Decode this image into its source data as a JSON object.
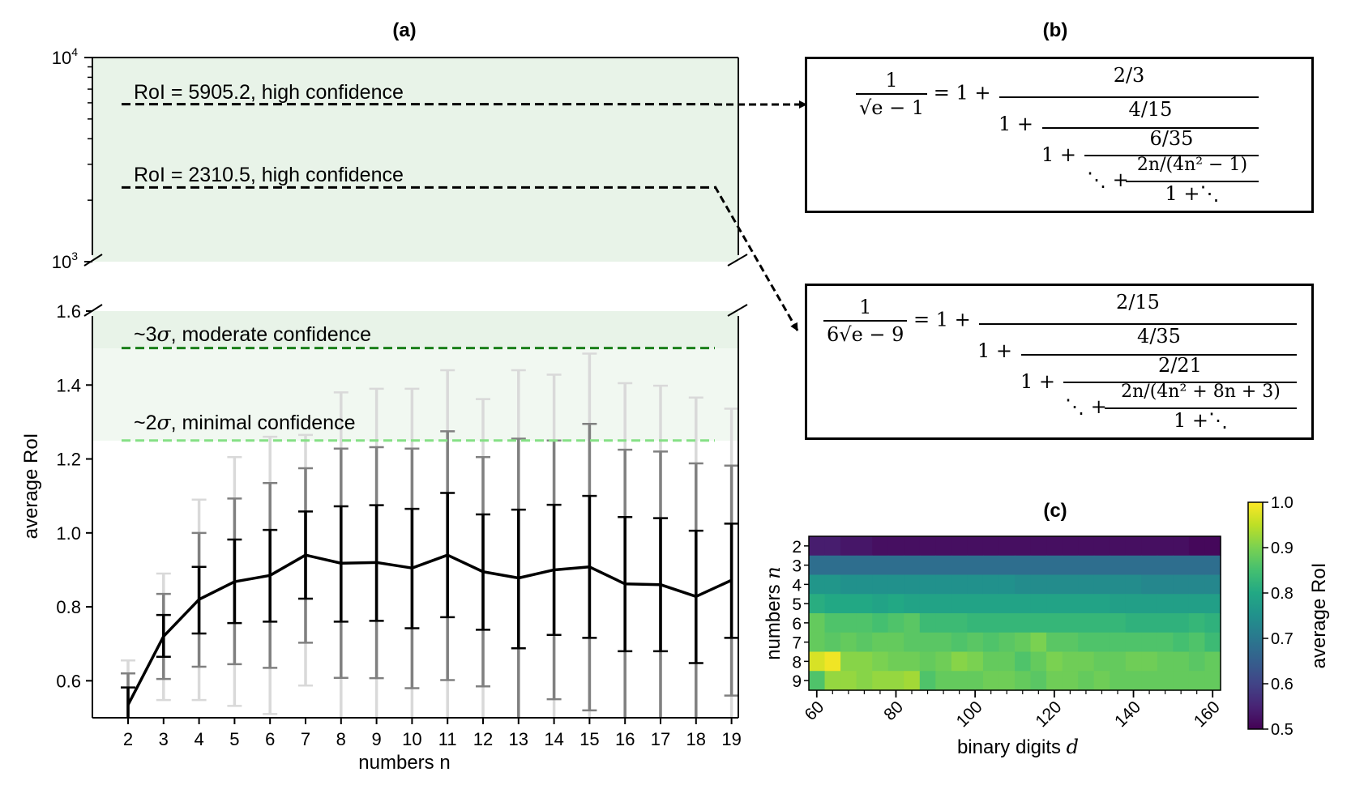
{
  "panels": {
    "a": {
      "label": "(a)"
    },
    "b": {
      "label": "(b)"
    },
    "c": {
      "label": "(c)"
    }
  },
  "chart_data": [
    {
      "type": "line",
      "panel": "(a)",
      "xlabel": "numbers n",
      "ylabel": "average RoI",
      "x": [
        2,
        3,
        4,
        5,
        6,
        7,
        8,
        9,
        10,
        11,
        12,
        13,
        14,
        15,
        16,
        17,
        18,
        19
      ],
      "series": [
        {
          "values": [
            0.535,
            0.72,
            0.82,
            0.868,
            0.885,
            0.94,
            0.918,
            0.92,
            0.905,
            0.94,
            0.895,
            0.878,
            0.9,
            0.908,
            0.862,
            0.86,
            0.828,
            0.872
          ],
          "error_bars": [
            {
              "color": "#000000",
              "low": [
                0.5,
                0.665,
                0.728,
                0.756,
                0.76,
                0.822,
                0.76,
                0.762,
                0.742,
                0.772,
                0.738,
                0.688,
                0.724,
                0.716,
                0.68,
                0.68,
                0.648,
                0.716
              ],
              "high": [
                0.582,
                0.778,
                0.908,
                0.982,
                1.008,
                1.058,
                1.072,
                1.075,
                1.065,
                1.108,
                1.05,
                1.063,
                1.076,
                1.1,
                1.043,
                1.04,
                1.006,
                1.025
              ]
            },
            {
              "color": "#808080",
              "low": [
                0.49,
                0.605,
                0.638,
                0.645,
                0.635,
                0.703,
                0.608,
                0.607,
                0.58,
                0.602,
                0.585,
                0.5,
                0.55,
                0.52,
                0.5,
                0.5,
                0.5,
                0.56
              ],
              "high": [
                0.62,
                0.835,
                1.0,
                1.093,
                1.135,
                1.175,
                1.228,
                1.232,
                1.228,
                1.275,
                1.205,
                1.255,
                1.25,
                1.295,
                1.225,
                1.22,
                1.188,
                1.182
              ]
            },
            {
              "color": "#d9d9d9",
              "low": [
                0.49,
                0.548,
                0.548,
                0.532,
                0.51,
                0.587,
                0.5,
                0.5,
                0.5,
                0.5,
                0.5,
                0.5,
                0.5,
                0.5,
                0.5,
                0.5,
                0.5,
                0.5
              ],
              "high": [
                0.655,
                0.89,
                1.09,
                1.205,
                1.26,
                1.265,
                1.38,
                1.39,
                1.39,
                1.44,
                1.362,
                1.44,
                1.428,
                1.485,
                1.405,
                1.398,
                1.366,
                1.336
              ]
            }
          ]
        }
      ],
      "ylim_lower": [
        0.5,
        1.6
      ],
      "yticks_lower": [
        "0.6",
        "0.8",
        "1.0",
        "1.2",
        "1.4",
        "1.6"
      ],
      "ylim_upper": [
        1000,
        10000
      ],
      "yscale_upper": "log",
      "yticks_upper": [
        "10",
        "10"
      ],
      "ytick_exponents_upper": [
        "3",
        "4"
      ],
      "reference_lines": [
        {
          "label": "RoI = 5905.2, high confidence",
          "y": 5905.2,
          "color": "#000000"
        },
        {
          "label": "RoI = 2310.5, high confidence",
          "y": 2310.5,
          "color": "#000000"
        },
        {
          "label_prefix": "~3",
          "label_symbol": "σ",
          "label_suffix": ", moderate confidence",
          "y": 1.5,
          "color": "#1a7f1a"
        },
        {
          "label_prefix": "~2",
          "label_symbol": "σ",
          "label_suffix": ", minimal confidence",
          "y": 1.25,
          "color": "#86e086"
        }
      ]
    },
    {
      "type": "heatmap",
      "panel": "(c)",
      "xlabel_text": "binary digits ",
      "xlabel_symbol": "d",
      "ylabel_text": "numbers ",
      "ylabel_symbol": "n",
      "x_range": [
        58,
        162
      ],
      "x_step": 4,
      "xticks": [
        "60",
        "80",
        "100",
        "120",
        "140",
        "160"
      ],
      "y": [
        "2",
        "3",
        "4",
        "5",
        "6",
        "7",
        "8",
        "9"
      ],
      "colorbar": {
        "label": "average RoI",
        "range": [
          0.5,
          1.0
        ],
        "ticks": [
          "0.5",
          "0.6",
          "0.7",
          "0.8",
          "0.9",
          "1.0"
        ],
        "colormap": "viridis"
      },
      "values": [
        [
          0.54,
          0.54,
          0.53,
          0.53,
          0.52,
          0.52,
          0.52,
          0.52,
          0.52,
          0.52,
          0.52,
          0.52,
          0.52,
          0.52,
          0.52,
          0.52,
          0.52,
          0.52,
          0.52,
          0.52,
          0.52,
          0.52,
          0.52,
          0.52,
          0.51,
          0.51
        ],
        [
          0.68,
          0.68,
          0.68,
          0.68,
          0.68,
          0.68,
          0.68,
          0.68,
          0.68,
          0.68,
          0.68,
          0.68,
          0.68,
          0.68,
          0.68,
          0.68,
          0.68,
          0.68,
          0.68,
          0.68,
          0.68,
          0.68,
          0.68,
          0.68,
          0.68,
          0.68
        ],
        [
          0.76,
          0.76,
          0.75,
          0.75,
          0.75,
          0.75,
          0.75,
          0.75,
          0.75,
          0.75,
          0.75,
          0.75,
          0.75,
          0.74,
          0.74,
          0.74,
          0.74,
          0.74,
          0.74,
          0.74,
          0.74,
          0.73,
          0.73,
          0.73,
          0.73,
          0.73
        ],
        [
          0.81,
          0.8,
          0.8,
          0.8,
          0.79,
          0.8,
          0.79,
          0.79,
          0.79,
          0.79,
          0.79,
          0.79,
          0.79,
          0.79,
          0.79,
          0.79,
          0.79,
          0.79,
          0.79,
          0.78,
          0.78,
          0.78,
          0.78,
          0.78,
          0.78,
          0.78
        ],
        [
          0.88,
          0.86,
          0.86,
          0.86,
          0.85,
          0.86,
          0.87,
          0.84,
          0.84,
          0.84,
          0.83,
          0.83,
          0.83,
          0.83,
          0.83,
          0.83,
          0.83,
          0.83,
          0.83,
          0.83,
          0.82,
          0.82,
          0.82,
          0.82,
          0.83,
          0.82
        ],
        [
          0.88,
          0.87,
          0.88,
          0.87,
          0.88,
          0.88,
          0.87,
          0.87,
          0.87,
          0.86,
          0.87,
          0.86,
          0.87,
          0.88,
          0.9,
          0.87,
          0.87,
          0.86,
          0.86,
          0.86,
          0.86,
          0.86,
          0.86,
          0.85,
          0.86,
          0.84
        ],
        [
          0.97,
          0.99,
          0.91,
          0.91,
          0.9,
          0.89,
          0.89,
          0.88,
          0.89,
          0.91,
          0.9,
          0.88,
          0.88,
          0.86,
          0.88,
          0.9,
          0.89,
          0.89,
          0.88,
          0.88,
          0.89,
          0.89,
          0.88,
          0.88,
          0.87,
          0.88
        ],
        [
          0.86,
          0.92,
          0.92,
          0.91,
          0.92,
          0.92,
          0.93,
          0.86,
          0.88,
          0.88,
          0.88,
          0.89,
          0.89,
          0.88,
          0.87,
          0.89,
          0.89,
          0.88,
          0.89,
          0.88,
          0.88,
          0.88,
          0.88,
          0.88,
          0.88,
          0.88
        ]
      ]
    }
  ],
  "formulas": {
    "one": {
      "lhs_num": "1",
      "lhs_den": "√e − 1",
      "eq": "= 1 +",
      "t1": "2/3",
      "t2": "4/15",
      "t3": "6/35",
      "tn": "2n/(4n² − 1)",
      "tail": "1 +⋱",
      "one_plus": "1 +",
      "dots_plus": "⋱ +"
    },
    "two": {
      "lhs_num": "1",
      "lhs_den": "6√e − 9",
      "eq": "= 1 +",
      "t1": "2/15",
      "t2": "4/35",
      "t3": "2/21",
      "tn": "2n/(4n² + 8n + 3)",
      "tail": "1 +⋱",
      "one_plus": "1 +",
      "dots_plus": "⋱ +"
    }
  }
}
